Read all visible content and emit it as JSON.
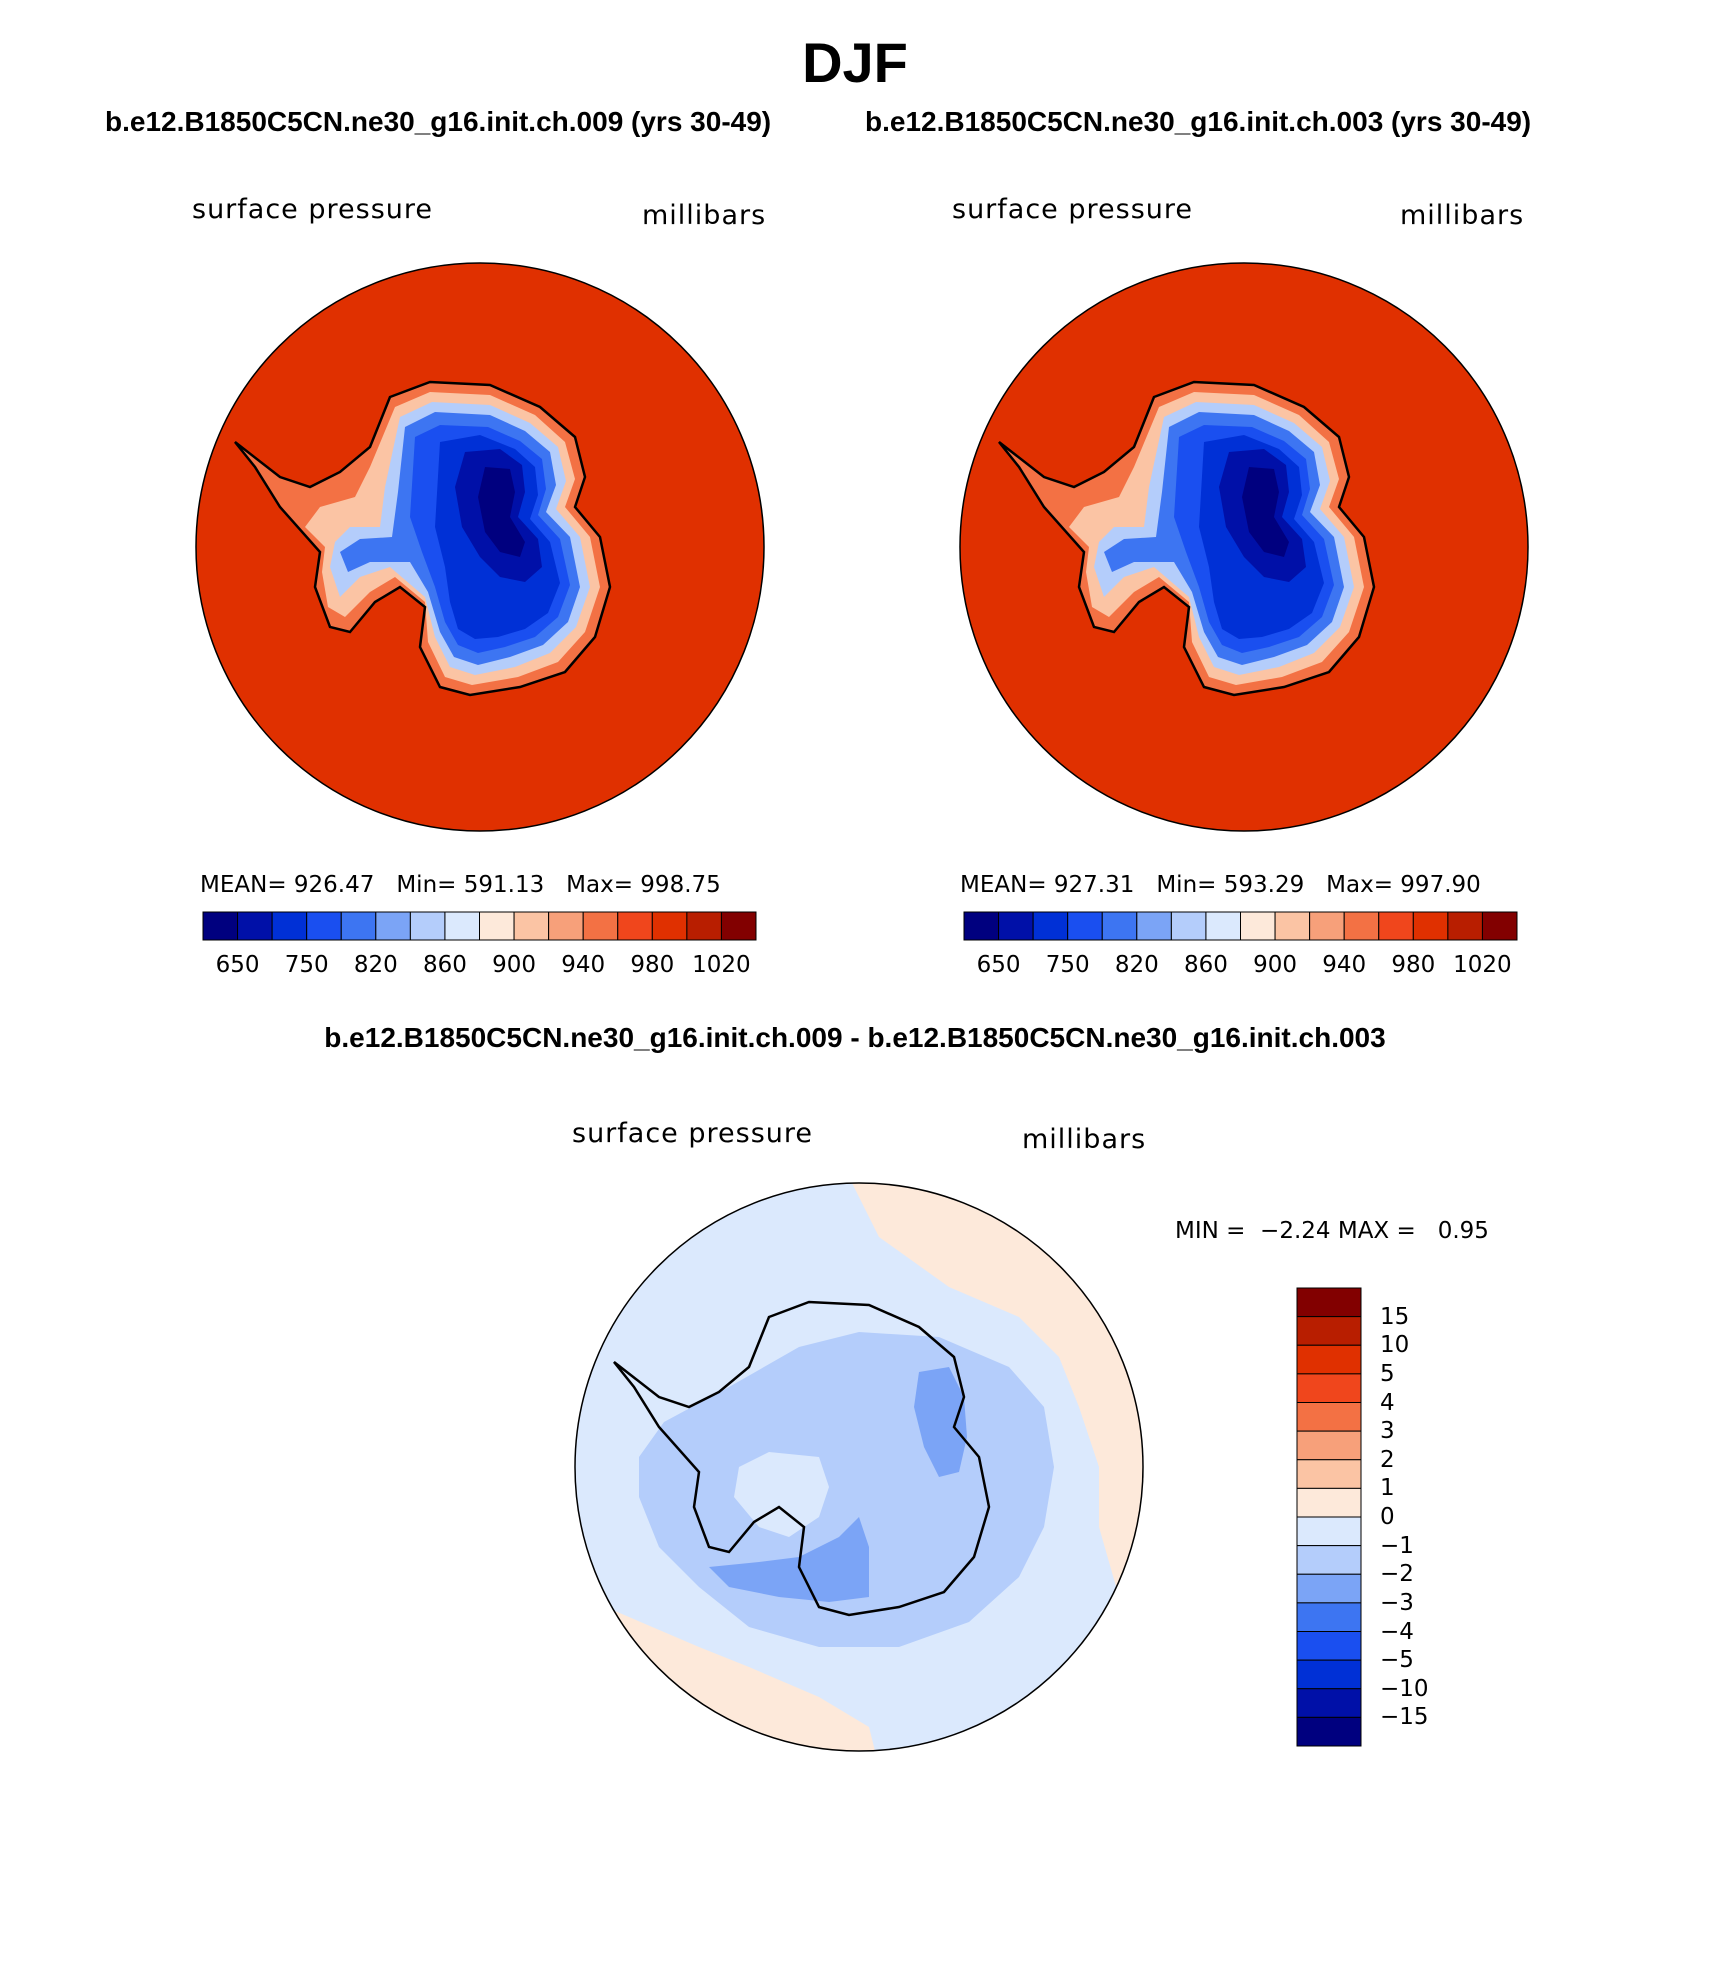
{
  "title": "DJF",
  "panels": [
    {
      "case_title": "b.e12.B1850C5CN.ne30_g16.init.ch.009 (yrs 30-49)",
      "left_label": "surface pressure",
      "right_label": "millibars",
      "stats": {
        "mean_label": "MEAN=",
        "mean": "926.47",
        "min_label": "Min=",
        "min": "591.13",
        "max_label": "Max=",
        "max": "998.75"
      },
      "colorbar": {
        "colors": [
          "#00007f",
          "#0010a8",
          "#0030d6",
          "#1a4ff0",
          "#3d75f2",
          "#7ba4f6",
          "#b4cdfb",
          "#dbe9fd",
          "#fde9da",
          "#fbc4a4",
          "#f7a07a",
          "#f37144",
          "#f0461c",
          "#e03000",
          "#b81e00",
          "#820000"
        ],
        "labels": [
          "650",
          "750",
          "820",
          "860",
          "900",
          "940",
          "980",
          "1020"
        ]
      }
    },
    {
      "case_title": "b.e12.B1850C5CN.ne30_g16.init.ch.003 (yrs 30-49)",
      "left_label": "surface pressure",
      "right_label": "millibars",
      "stats": {
        "mean_label": "MEAN=",
        "mean": "927.31",
        "min_label": "Min=",
        "min": "593.29",
        "max_label": "Max=",
        "max": "997.90"
      },
      "colorbar": {
        "colors": [
          "#00007f",
          "#0010a8",
          "#0030d6",
          "#1a4ff0",
          "#3d75f2",
          "#7ba4f6",
          "#b4cdfb",
          "#dbe9fd",
          "#fde9da",
          "#fbc4a4",
          "#f7a07a",
          "#f37144",
          "#f0461c",
          "#e03000",
          "#b81e00",
          "#820000"
        ],
        "labels": [
          "650",
          "750",
          "820",
          "860",
          "900",
          "940",
          "980",
          "1020"
        ]
      }
    }
  ],
  "difference": {
    "title": "b.e12.B1850C5CN.ne30_g16.init.ch.009 - b.e12.B1850C5CN.ne30_g16.init.ch.003",
    "left_label": "surface pressure",
    "right_label": "millibars",
    "min_label": "MIN =",
    "min": "−2.24",
    "max_label": "MAX =",
    "max": "0.95",
    "colorbar": {
      "colors_top_to_bottom": [
        "#820000",
        "#b81e00",
        "#e03000",
        "#f0461c",
        "#f37144",
        "#f7a07a",
        "#fbc4a4",
        "#fde9da",
        "#dbe9fd",
        "#b4cdfb",
        "#7ba4f6",
        "#3d75f2",
        "#1a4ff0",
        "#0030d6",
        "#0010a8",
        "#00007f"
      ],
      "labels_top_to_bottom": [
        "15",
        "10",
        "5",
        "4",
        "3",
        "2",
        "1",
        "0",
        "−1",
        "−2",
        "−3",
        "−4",
        "−5",
        "−10",
        "−15"
      ]
    }
  },
  "colors": {
    "ocean_fill": "#e03000",
    "diff_background": "#dbe9fd",
    "diff_positive": "#fde9da",
    "diff_minus1": "#b4cdfb",
    "diff_minus2": "#7ba4f6"
  }
}
